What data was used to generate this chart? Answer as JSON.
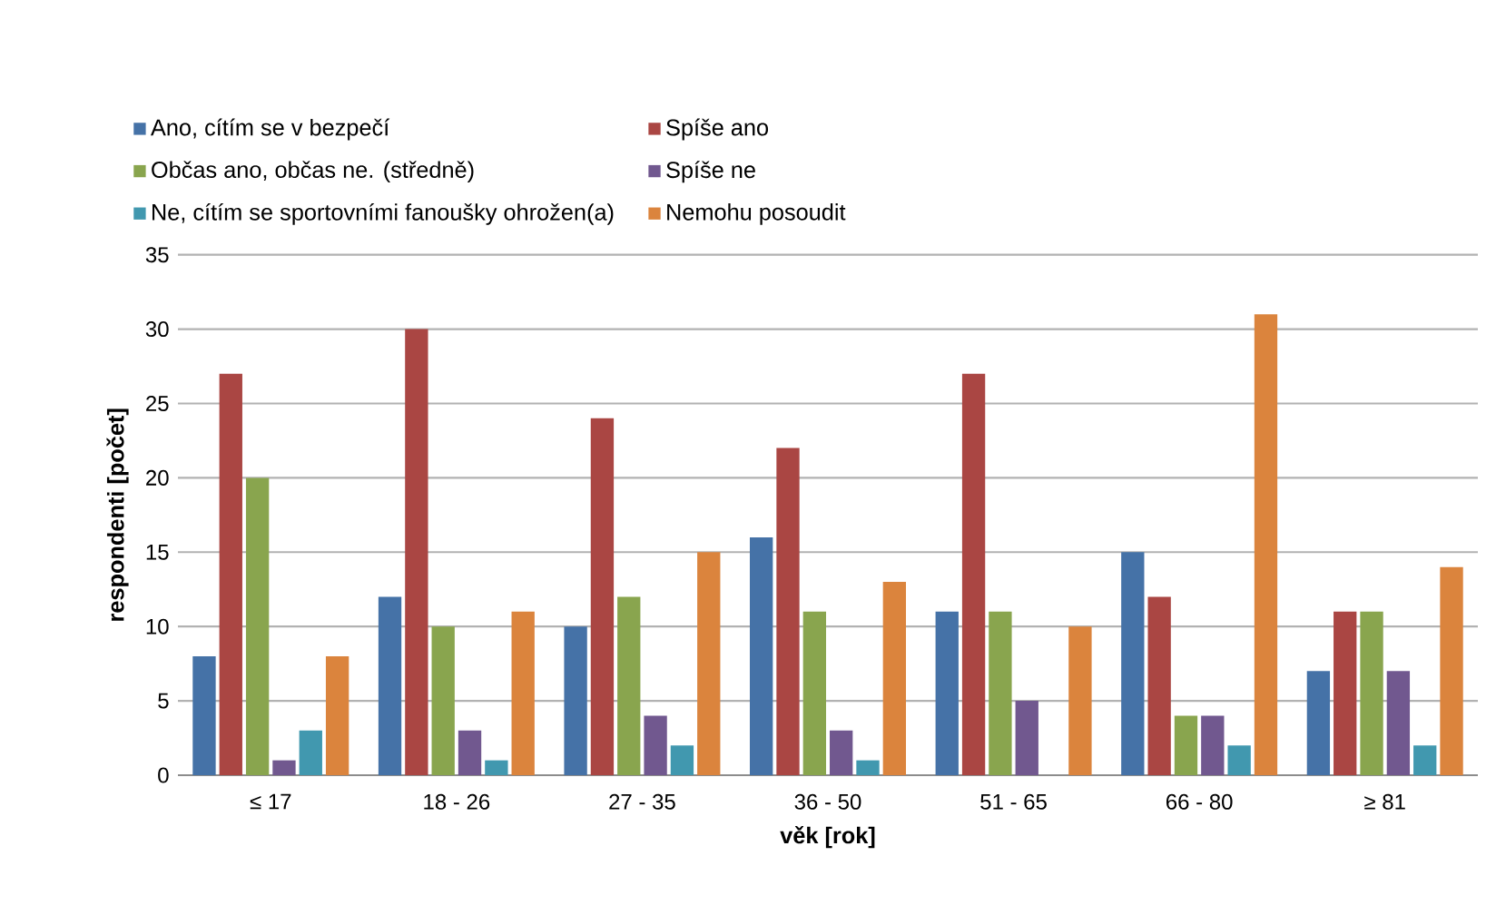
{
  "chart_data": {
    "type": "bar",
    "xlabel": "věk [rok]",
    "ylabel": "respondenti [počet]",
    "categories": [
      "≤ 17",
      "18 - 26",
      "27 - 35",
      "36 - 50",
      "51 - 65",
      "66 - 80",
      "≥ 81"
    ],
    "series": [
      {
        "name": "Ano, cítím se v bezpečí",
        "color": "#4572a7",
        "values": [
          8,
          12,
          10,
          16,
          11,
          15,
          7
        ]
      },
      {
        "name": "Spíše ano",
        "color": "#aa4643",
        "values": [
          27,
          30,
          24,
          22,
          27,
          12,
          11
        ]
      },
      {
        "name": "Občas ano, občas ne. (středně)",
        "color": "#89a54e",
        "values": [
          20,
          10,
          12,
          11,
          11,
          4,
          11
        ]
      },
      {
        "name": "Spíše ne",
        "color": "#71588f",
        "values": [
          1,
          3,
          4,
          3,
          5,
          4,
          7
        ]
      },
      {
        "name": "Ne, cítím se sportovními fanoušky ohrožen(a)",
        "color": "#4198af",
        "values": [
          3,
          1,
          2,
          1,
          null,
          2,
          2
        ]
      },
      {
        "name": "Nemohu posoudit",
        "color": "#db843d",
        "values": [
          8,
          11,
          15,
          13,
          10,
          31,
          14
        ]
      }
    ],
    "ylim": [
      0,
      35
    ],
    "yticks": [
      0,
      5,
      10,
      15,
      20,
      25,
      30,
      35
    ],
    "grid": "y",
    "legend": "top"
  }
}
